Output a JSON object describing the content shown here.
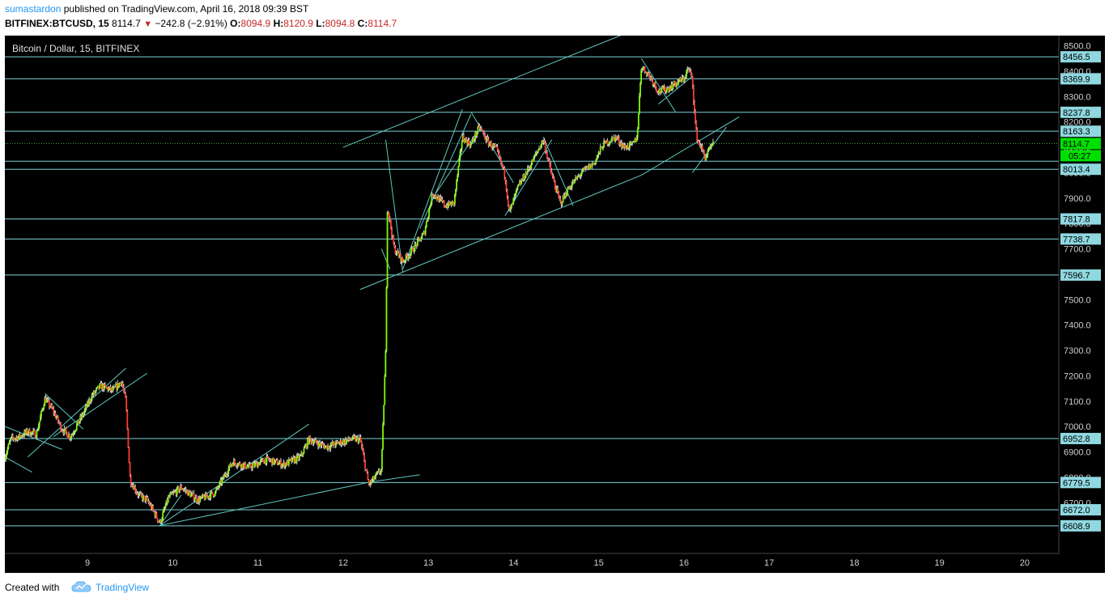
{
  "header": {
    "author": "sumastardon",
    "published_text": "published on TradingView.com, April 16, 2018 09:39 BST",
    "symbol": "BITFINEX:BTCUSD, 15",
    "last": "8114.7",
    "change_triangle": "▼",
    "change": "−242.8 (−2.91%)",
    "o_label": "O:",
    "o_value": "8094.9",
    "h_label": "H:",
    "h_value": "8120.9",
    "l_label": "L:",
    "l_value": "8094.8",
    "c_label": "C:",
    "c_value": "8114.7"
  },
  "footer": {
    "created_with": "Created with",
    "brand": "TradingView"
  },
  "chart_data": {
    "type": "candlestick",
    "title": "Bitcoin / Dollar, 15, BITFINEX",
    "x_ticks": [
      "9",
      "10",
      "11",
      "12",
      "13",
      "14",
      "15",
      "16",
      "17",
      "18",
      "19",
      "20"
    ],
    "y_ticks": [
      6700.0,
      6800.0,
      6900.0,
      7000.0,
      7100.0,
      7200.0,
      7300.0,
      7400.0,
      7500.0,
      7600.0,
      7700.0,
      7800.0,
      7900.0,
      8000.0,
      8100.0,
      8200.0,
      8300.0,
      8400.0,
      8500.0
    ],
    "y_range": [
      6500,
      8540
    ],
    "x_range_days": [
      8.03,
      20.4
    ],
    "horizontal_levels": [
      8456.5,
      8369.9,
      8237.8,
      8163.3,
      8045.0,
      8013.4,
      7817.8,
      7738.7,
      7596.7,
      6952.8,
      6779.5,
      6672.0,
      6608.9
    ],
    "labeled_levels": [
      8456.5,
      8369.9,
      8237.8,
      8163.3,
      8013.4,
      7817.8,
      7738.7,
      7596.7,
      6952.8,
      6779.5,
      6672.0,
      6608.9
    ],
    "current_price": {
      "value": 8114.7,
      "label": "8114.7",
      "countdown": "05:27"
    },
    "price_path": [
      [
        8.03,
        6880
      ],
      [
        8.1,
        6950
      ],
      [
        8.2,
        6960
      ],
      [
        8.3,
        6980
      ],
      [
        8.4,
        6970
      ],
      [
        8.5,
        7110
      ],
      [
        8.6,
        7060
      ],
      [
        8.7,
        6990
      ],
      [
        8.8,
        6960
      ],
      [
        8.95,
        7050
      ],
      [
        9.05,
        7120
      ],
      [
        9.15,
        7160
      ],
      [
        9.3,
        7140
      ],
      [
        9.4,
        7180
      ],
      [
        9.45,
        7100
      ],
      [
        9.5,
        6790
      ],
      [
        9.6,
        6730
      ],
      [
        9.7,
        6710
      ],
      [
        9.85,
        6620
      ],
      [
        9.95,
        6720
      ],
      [
        10.1,
        6760
      ],
      [
        10.3,
        6710
      ],
      [
        10.5,
        6740
      ],
      [
        10.7,
        6860
      ],
      [
        10.9,
        6840
      ],
      [
        11.1,
        6870
      ],
      [
        11.3,
        6850
      ],
      [
        11.5,
        6880
      ],
      [
        11.6,
        6950
      ],
      [
        11.8,
        6920
      ],
      [
        12.0,
        6940
      ],
      [
        12.1,
        6950
      ],
      [
        12.2,
        6950
      ],
      [
        12.3,
        6770
      ],
      [
        12.45,
        6830
      ],
      [
        12.5,
        7300
      ],
      [
        12.52,
        7870
      ],
      [
        12.6,
        7700
      ],
      [
        12.7,
        7650
      ],
      [
        12.8,
        7690
      ],
      [
        12.95,
        7760
      ],
      [
        13.05,
        7920
      ],
      [
        13.2,
        7870
      ],
      [
        13.3,
        7880
      ],
      [
        13.4,
        8140
      ],
      [
        13.5,
        8110
      ],
      [
        13.6,
        8180
      ],
      [
        13.7,
        8120
      ],
      [
        13.8,
        8090
      ],
      [
        13.9,
        7990
      ],
      [
        13.95,
        7840
      ],
      [
        14.05,
        7940
      ],
      [
        14.2,
        8030
      ],
      [
        14.35,
        8130
      ],
      [
        14.45,
        7990
      ],
      [
        14.55,
        7880
      ],
      [
        14.65,
        7940
      ],
      [
        14.8,
        8000
      ],
      [
        14.95,
        8040
      ],
      [
        15.05,
        8110
      ],
      [
        15.2,
        8140
      ],
      [
        15.3,
        8100
      ],
      [
        15.4,
        8110
      ],
      [
        15.45,
        8140
      ],
      [
        15.5,
        8420
      ],
      [
        15.6,
        8380
      ],
      [
        15.7,
        8320
      ],
      [
        15.8,
        8330
      ],
      [
        15.9,
        8350
      ],
      [
        16.0,
        8370
      ],
      [
        16.05,
        8410
      ],
      [
        16.1,
        8370
      ],
      [
        16.12,
        8250
      ],
      [
        16.15,
        8140
      ],
      [
        16.2,
        8100
      ],
      [
        16.25,
        8060
      ],
      [
        16.3,
        8090
      ],
      [
        16.35,
        8115
      ]
    ],
    "trendlines": [
      [
        [
          8.03,
          7000
        ],
        [
          8.7,
          6910
        ]
      ],
      [
        [
          8.03,
          6880
        ],
        [
          8.35,
          6820
        ]
      ],
      [
        [
          8.3,
          6880
        ],
        [
          9.45,
          7230
        ]
      ],
      [
        [
          8.6,
          6960
        ],
        [
          9.7,
          7210
        ]
      ],
      [
        [
          8.5,
          7130
        ],
        [
          8.95,
          6990
        ]
      ],
      [
        [
          9.85,
          6610
        ],
        [
          12.3,
          6780
        ]
      ],
      [
        [
          9.85,
          6610
        ],
        [
          10.1,
          6730
        ]
      ],
      [
        [
          9.85,
          6610
        ],
        [
          11.6,
          7010
        ]
      ],
      [
        [
          12.3,
          6780
        ],
        [
          12.9,
          6810
        ]
      ],
      [
        [
          12.2,
          7540
        ],
        [
          15.5,
          7990
        ]
      ],
      [
        [
          15.5,
          7990
        ],
        [
          16.65,
          8220
        ]
      ],
      [
        [
          12.0,
          8100
        ],
        [
          15.4,
          8560
        ]
      ],
      [
        [
          12.5,
          8130
        ],
        [
          12.7,
          7610
        ]
      ],
      [
        [
          12.45,
          7700
        ],
        [
          12.55,
          7620
        ]
      ],
      [
        [
          12.7,
          7620
        ],
        [
          13.4,
          8250
        ]
      ],
      [
        [
          12.9,
          7780
        ],
        [
          13.5,
          8230
        ]
      ],
      [
        [
          13.05,
          7900
        ],
        [
          13.55,
          8150
        ]
      ],
      [
        [
          13.5,
          8240
        ],
        [
          14.0,
          7960
        ]
      ],
      [
        [
          13.9,
          7830
        ],
        [
          14.45,
          8130
        ]
      ],
      [
        [
          14.35,
          8140
        ],
        [
          14.7,
          7870
        ]
      ],
      [
        [
          15.5,
          8450
        ],
        [
          15.9,
          8240
        ]
      ],
      [
        [
          15.7,
          8270
        ],
        [
          16.1,
          8380
        ]
      ],
      [
        [
          16.1,
          8000
        ],
        [
          16.5,
          8180
        ]
      ]
    ]
  }
}
